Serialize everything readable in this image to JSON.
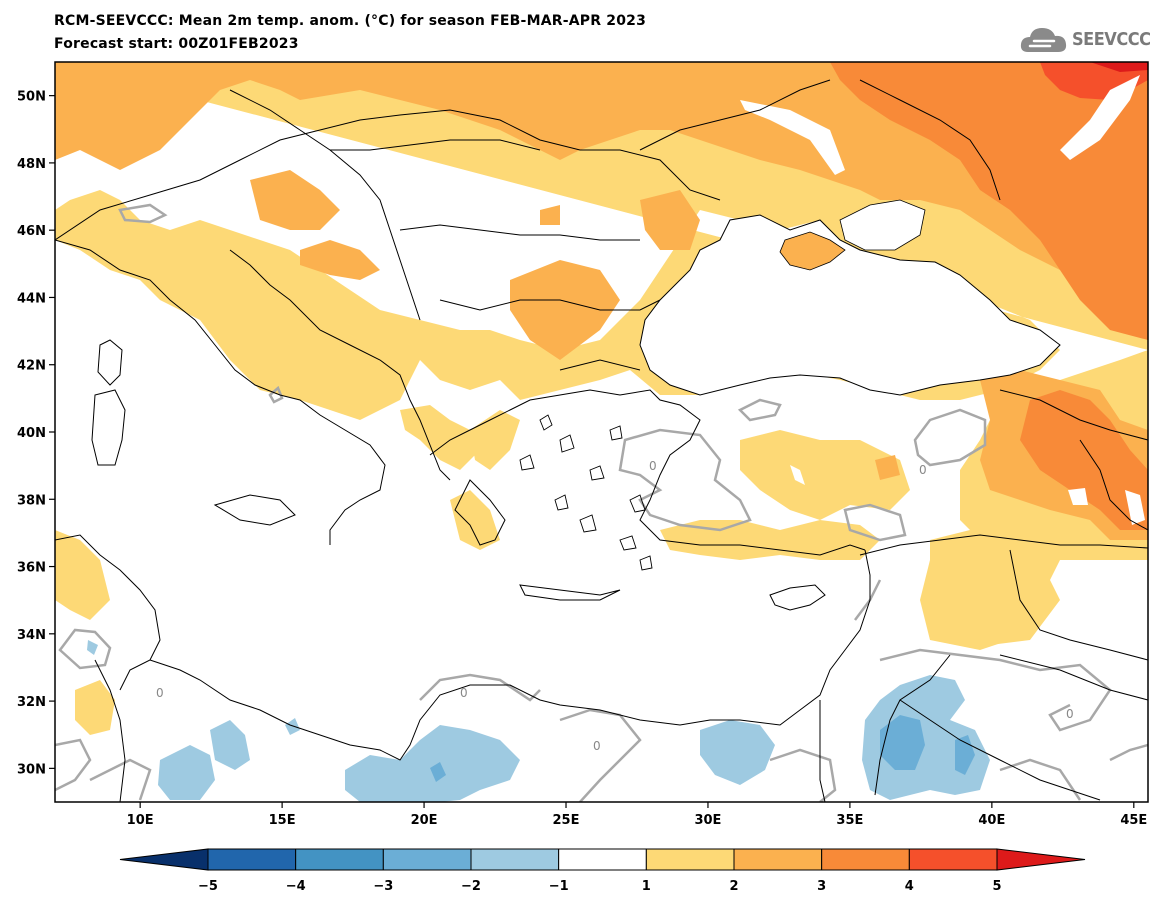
{
  "header": {
    "title": "RCM-SEEVCCC: Mean 2m temp. anom. (°C) for season FEB-MAR-APR 2023",
    "subtitle": "Forecast start: 00Z01FEB2023",
    "logo_text": "SEEVCCC",
    "logo_icon": "cloud-icon"
  },
  "map": {
    "lon_range": [
      7,
      45.5
    ],
    "lat_range": [
      29,
      51
    ],
    "lon_ticks": [
      "10E",
      "15E",
      "20E",
      "25E",
      "30E",
      "35E",
      "40E",
      "45E"
    ],
    "lat_ticks": [
      "50N",
      "48N",
      "46N",
      "44N",
      "42N",
      "40N",
      "38N",
      "36N",
      "34N",
      "32N",
      "30N"
    ],
    "contour_label": "0"
  },
  "colorbar": {
    "labels": [
      "−5",
      "−4",
      "−3",
      "−2",
      "−1",
      "1",
      "2",
      "3",
      "4",
      "5"
    ],
    "colors": [
      "#08306b",
      "#2166ac",
      "#4393c3",
      "#6baed6",
      "#9ecae1",
      "#ffffff",
      "#fdd976",
      "#fbb14f",
      "#f88a38",
      "#f5502b",
      "#dd1a1a"
    ]
  }
}
